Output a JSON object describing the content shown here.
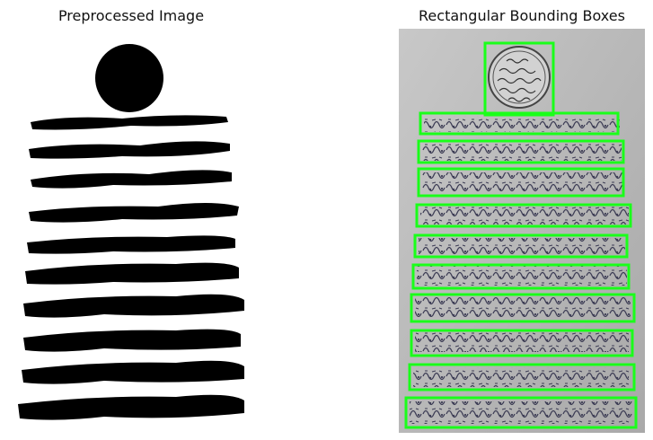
{
  "panels": {
    "left": {
      "title": "Preprocessed Image"
    },
    "right": {
      "title": "Rectangular Bounding Boxes"
    }
  },
  "colors": {
    "box": "#1aff1a",
    "ink": "#000000",
    "paper": "#b7b7b7",
    "script_ink": "#3b3b4a"
  },
  "figure": {
    "text_line_count": 10,
    "has_seal": true
  }
}
